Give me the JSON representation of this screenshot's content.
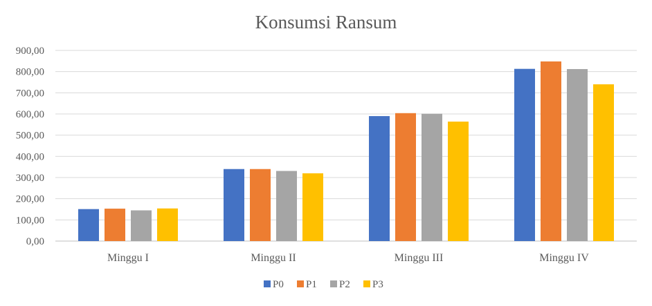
{
  "chart_data": {
    "type": "bar",
    "title": "Konsumsi Ransum",
    "xlabel": "",
    "ylabel": "",
    "ylim": [
      0,
      900
    ],
    "y_tick_step": 100,
    "y_tick_format": "comma-2-decimals",
    "grid": true,
    "legend_position": "bottom",
    "categories": [
      "Minggu I",
      "Minggu II",
      "Minggu III",
      "Minggu IV"
    ],
    "series": [
      {
        "name": "P0",
        "color": "#4472C4",
        "values": [
          151,
          340,
          590,
          813
        ]
      },
      {
        "name": "P1",
        "color": "#ED7D31",
        "values": [
          153,
          340,
          604,
          848
        ]
      },
      {
        "name": "P2",
        "color": "#A5A5A5",
        "values": [
          145,
          331,
          601,
          812
        ]
      },
      {
        "name": "P3",
        "color": "#FFC000",
        "values": [
          154,
          320,
          564,
          740
        ]
      }
    ]
  }
}
